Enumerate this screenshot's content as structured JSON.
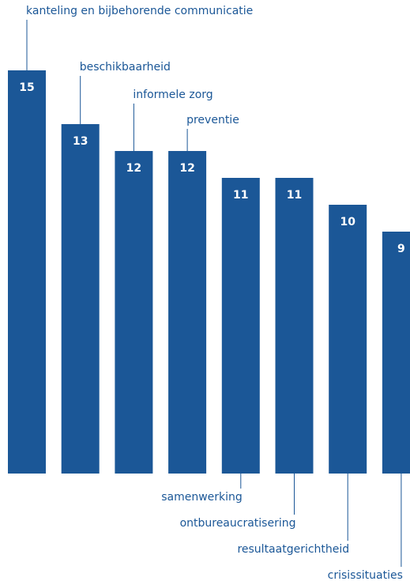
{
  "chart_data": {
    "type": "bar",
    "categories": [
      "kanteling en bijbehorende communicatie",
      "beschikbaarheid",
      "informele zorg",
      "preventie",
      "samenwerking",
      "ontbureaucratisering",
      "resultaatgerichtheid",
      "crisissituaties"
    ],
    "values": [
      15,
      13,
      12,
      12,
      11,
      11,
      10,
      9
    ],
    "label_position": [
      "top",
      "top",
      "top",
      "top",
      "bottom",
      "bottom",
      "bottom",
      "bottom"
    ],
    "ylim": [
      0,
      15
    ],
    "grid": false,
    "bar_color": "#1b5797",
    "label_color": "#1b5797",
    "value_label_color": "#ffffff"
  }
}
